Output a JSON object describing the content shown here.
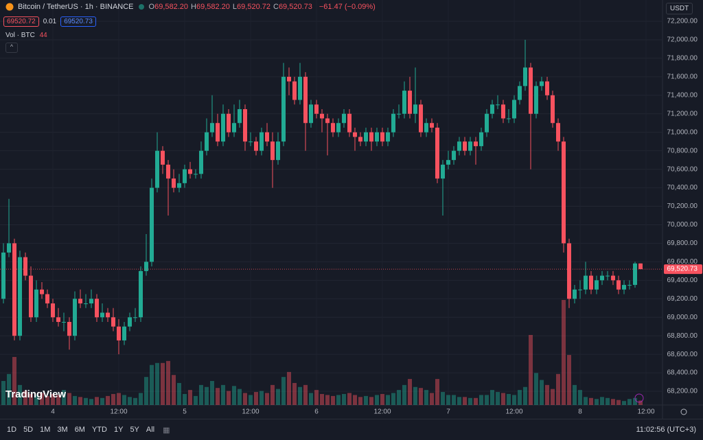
{
  "header": {
    "symbol": "Bitcoin / TetherUS · 1h · BINANCE",
    "ohlc": [
      {
        "key": "O",
        "value": "69,582.20"
      },
      {
        "key": "H",
        "value": "69,582.20"
      },
      {
        "key": "L",
        "value": "69,520.72"
      },
      {
        "key": "C",
        "value": "69,520.73"
      }
    ],
    "change": "−61.47 (−0.09%)",
    "bid": "69520.72",
    "spread": "0.01",
    "ask": "69520.73",
    "volume_title": "Vol · BTC",
    "currency": "USDT",
    "logo": "TradingView"
  },
  "toolbar": {
    "ranges": [
      "1D",
      "5D",
      "1M",
      "3M",
      "6M",
      "YTD",
      "1Y",
      "5Y",
      "All"
    ],
    "clock": "11:02:56 (UTC+3)"
  },
  "chart_data": {
    "type": "candlestick",
    "up_color": "#22ab94",
    "down_color": "#f7525f",
    "grid": true,
    "x": [
      -9,
      -8,
      -7,
      -6,
      -5,
      -4,
      -3,
      -2,
      -1,
      0,
      1,
      2,
      3,
      4,
      5,
      6,
      7,
      8,
      9,
      10,
      11,
      12,
      13,
      14,
      15,
      16,
      17,
      18,
      19,
      20,
      21,
      22,
      23,
      24,
      25,
      26,
      27,
      28,
      29,
      30,
      31,
      32,
      33,
      34,
      35,
      36,
      37,
      38,
      39,
      40,
      41,
      42,
      43,
      44,
      45,
      46,
      47,
      48,
      49,
      50,
      51,
      52,
      53,
      54,
      55,
      56,
      57,
      58,
      59,
      60,
      61,
      62,
      63,
      64,
      65,
      66,
      67,
      68,
      69,
      70,
      71,
      72,
      73,
      74,
      75,
      76,
      77,
      78,
      79,
      80,
      81,
      82,
      83,
      84,
      85,
      86,
      87,
      88,
      89,
      90,
      91,
      92,
      93,
      94,
      95,
      96,
      97,
      98,
      99,
      100,
      101,
      102,
      103,
      104,
      105,
      106,
      107
    ],
    "open": [
      69200,
      69700,
      69800,
      68800,
      69650,
      69450,
      69000,
      69300,
      69250,
      69150,
      69000,
      68950,
      68950,
      68800,
      69200,
      69150,
      69150,
      69200,
      69000,
      69050,
      69000,
      68900,
      68750,
      68900,
      69000,
      69000,
      69500,
      69600,
      70400,
      70800,
      70650,
      70500,
      70400,
      70450,
      70600,
      70550,
      70550,
      70800,
      71000,
      71100,
      70900,
      71200,
      71000,
      71100,
      71250,
      70900,
      70900,
      70800,
      71000,
      70900,
      70700,
      70900,
      71600,
      71550,
      71350,
      71600,
      71100,
      71300,
      71200,
      71150,
      71100,
      71000,
      71100,
      71200,
      71000,
      70950,
      70900,
      71000,
      70900,
      71000,
      70900,
      71000,
      71200,
      71200,
      71450,
      71200,
      71300,
      71000,
      71100,
      71050,
      70500,
      70650,
      70700,
      70800,
      70900,
      70800,
      70900,
      70850,
      71000,
      71200,
      71300,
      71300,
      71150,
      71150,
      71350,
      71500,
      71700,
      71200,
      71500,
      71550,
      71400,
      71100,
      70900,
      69800,
      69200,
      69300,
      69300,
      69450,
      69300,
      69400,
      69450,
      69450,
      69400,
      69300,
      69350,
      69350,
      69582.2
    ],
    "high": [
      69800,
      70280,
      69850,
      69720,
      69700,
      69550,
      69400,
      69380,
      69300,
      69200,
      69100,
      69050,
      69000,
      69280,
      69300,
      69250,
      69300,
      69250,
      69150,
      69100,
      69100,
      68980,
      68950,
      69050,
      69100,
      69550,
      69900,
      70500,
      71000,
      70850,
      70700,
      70600,
      70550,
      70650,
      70680,
      70600,
      70900,
      71150,
      71400,
      71200,
      71300,
      71250,
      71300,
      71350,
      71300,
      71000,
      70950,
      71050,
      71100,
      71000,
      71000,
      71750,
      71700,
      71600,
      71750,
      71650,
      71350,
      71350,
      71250,
      71200,
      71150,
      71150,
      71250,
      71250,
      71050,
      71000,
      71050,
      71050,
      71050,
      71050,
      71050,
      71250,
      71300,
      71550,
      71600,
      71700,
      71350,
      71150,
      71150,
      71100,
      70700,
      70800,
      70850,
      70950,
      70950,
      70950,
      70950,
      71050,
      71250,
      71350,
      71400,
      71350,
      71250,
      71400,
      71550,
      72000,
      71750,
      71550,
      71600,
      71600,
      71450,
      71150,
      70950,
      69850,
      69350,
      69400,
      69600,
      69500,
      69450,
      69500,
      69500,
      69500,
      69450,
      69400,
      69400,
      69600,
      69582.2
    ],
    "low": [
      69150,
      69650,
      68750,
      68750,
      69400,
      68950,
      68950,
      69200,
      69100,
      68950,
      68900,
      68850,
      68650,
      68750,
      69100,
      69100,
      69100,
      68950,
      68950,
      68950,
      68850,
      68600,
      68700,
      68850,
      68950,
      68950,
      69450,
      69550,
      70350,
      70550,
      70100,
      70350,
      70350,
      70400,
      70500,
      70500,
      70500,
      70750,
      70950,
      70850,
      70850,
      70950,
      70950,
      71050,
      70800,
      70850,
      70750,
      70750,
      70850,
      70400,
      70650,
      70850,
      71400,
      71300,
      71300,
      70800,
      71050,
      71150,
      71000,
      70750,
      70950,
      70950,
      71050,
      70950,
      70800,
      70850,
      70850,
      70800,
      70850,
      70850,
      70850,
      70950,
      71150,
      71150,
      71150,
      71100,
      70950,
      70950,
      71000,
      70450,
      70100,
      70600,
      70650,
      70750,
      70750,
      70750,
      70650,
      70800,
      70950,
      71150,
      71250,
      71100,
      71100,
      71100,
      71300,
      71450,
      70600,
      71150,
      71450,
      71350,
      71050,
      70800,
      69700,
      69100,
      69150,
      69200,
      69250,
      69250,
      69250,
      69350,
      69400,
      69350,
      69250,
      69250,
      69300,
      69320,
      69520.72
    ],
    "close": [
      69700,
      69800,
      68800,
      69650,
      69450,
      69000,
      69300,
      69250,
      69150,
      69000,
      68950,
      68950,
      68800,
      69200,
      69150,
      69150,
      69200,
      69000,
      69050,
      69000,
      68900,
      68750,
      68900,
      69000,
      69000,
      69500,
      69600,
      70400,
      70800,
      70650,
      70500,
      70400,
      70450,
      70600,
      70550,
      70550,
      70800,
      71000,
      71100,
      70900,
      71200,
      71000,
      71100,
      71250,
      70900,
      70900,
      70800,
      71000,
      70900,
      70700,
      70900,
      71600,
      71550,
      71350,
      71600,
      71100,
      71300,
      71200,
      71150,
      71100,
      71000,
      71100,
      71200,
      71000,
      70950,
      70900,
      71000,
      70900,
      71000,
      70900,
      71000,
      71200,
      71200,
      71450,
      71200,
      71300,
      71000,
      71100,
      71050,
      70500,
      70650,
      70700,
      70800,
      70900,
      70800,
      70900,
      70850,
      71000,
      71200,
      71300,
      71300,
      71150,
      71150,
      71350,
      71500,
      71700,
      71200,
      71500,
      71550,
      71400,
      71100,
      70900,
      69800,
      69200,
      69300,
      69300,
      69450,
      69300,
      69400,
      69450,
      69450,
      69400,
      69300,
      69350,
      69350,
      69582.2,
      69520.73
    ],
    "volume": [
      240,
      310,
      480,
      200,
      140,
      110,
      100,
      120,
      90,
      110,
      100,
      150,
      120,
      90,
      80,
      70,
      60,
      80,
      70,
      90,
      110,
      120,
      100,
      80,
      70,
      120,
      280,
      400,
      420,
      420,
      440,
      300,
      220,
      110,
      150,
      90,
      200,
      180,
      240,
      170,
      200,
      140,
      190,
      160,
      120,
      100,
      130,
      140,
      120,
      200,
      160,
      280,
      330,
      220,
      180,
      200,
      120,
      150,
      110,
      100,
      90,
      100,
      110,
      120,
      100,
      80,
      90,
      80,
      100,
      110,
      100,
      120,
      150,
      200,
      260,
      180,
      170,
      150,
      120,
      260,
      130,
      100,
      100,
      80,
      80,
      70,
      70,
      100,
      100,
      150,
      130,
      120,
      110,
      100,
      150,
      180,
      700,
      320,
      250,
      200,
      160,
      310,
      1050,
      500,
      200,
      150,
      80,
      70,
      60,
      80,
      70,
      60,
      50,
      40,
      60,
      70,
      44
    ],
    "last_label": "69,520.73",
    "xlim": [
      -9.625,
      111
    ],
    "xticks": [
      {
        "value": 0,
        "label": "4"
      },
      {
        "value": 12,
        "label": "12:00"
      },
      {
        "value": 24,
        "label": "5"
      },
      {
        "value": 36,
        "label": "12:00"
      },
      {
        "value": 48,
        "label": "6"
      },
      {
        "value": 60,
        "label": "12:00"
      },
      {
        "value": 72,
        "label": "7"
      },
      {
        "value": 84,
        "label": "12:00"
      },
      {
        "value": 96,
        "label": "8"
      },
      {
        "value": 108,
        "label": "12:00"
      }
    ],
    "ylim": [
      68052,
      72378
    ],
    "yticks": [
      {
        "value": 68200,
        "label": "68,200.00"
      },
      {
        "value": 68400,
        "label": "68,400.00"
      },
      {
        "value": 68600,
        "label": "68,600.00"
      },
      {
        "value": 68800,
        "label": "68,800.00"
      },
      {
        "value": 69000,
        "label": "69,000.00"
      },
      {
        "value": 69200,
        "label": "69,200.00"
      },
      {
        "value": 69400,
        "label": "69,400.00"
      },
      {
        "value": 69600,
        "label": "69,600.00"
      },
      {
        "value": 69800,
        "label": "69,800.00"
      },
      {
        "value": 70000,
        "label": "70,000.00"
      },
      {
        "value": 70200,
        "label": "70,200.00"
      },
      {
        "value": 70400,
        "label": "70,400.00"
      },
      {
        "value": 70600,
        "label": "70,600.00"
      },
      {
        "value": 70800,
        "label": "70,800.00"
      },
      {
        "value": 71000,
        "label": "71,000.00"
      },
      {
        "value": 71200,
        "label": "71,200.00"
      },
      {
        "value": 71400,
        "label": "71,400.00"
      },
      {
        "value": 71600,
        "label": "71,600.00"
      },
      {
        "value": 71800,
        "label": "71,800.00"
      },
      {
        "value": 72000,
        "label": "72,000.00"
      },
      {
        "value": 72200,
        "label": "72,200.00"
      }
    ],
    "vlim": [
      0,
      4000
    ]
  }
}
